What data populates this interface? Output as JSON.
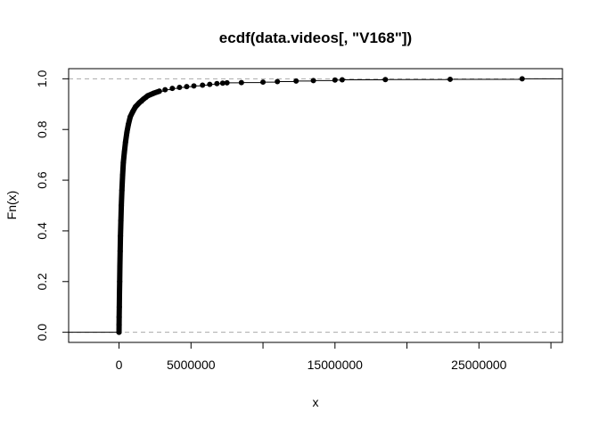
{
  "chart_data": {
    "type": "ecdf",
    "title": "ecdf(data.videos[, \"V168\"])",
    "xlabel": "x",
    "ylabel": "Fn(x)",
    "xlim": [
      -3500000,
      30800000
    ],
    "ylim": [
      -0.04,
      1.04
    ],
    "x_ticks": [
      0,
      5000000,
      10000000,
      15000000,
      20000000,
      25000000,
      30000000
    ],
    "x_tick_labels": [
      "0",
      "5000000",
      "",
      "15000000",
      "",
      "25000000",
      ""
    ],
    "y_ticks": [
      0.0,
      0.2,
      0.4,
      0.6,
      0.8,
      1.0
    ],
    "y_tick_labels": [
      "0.0",
      "0.2",
      "0.4",
      "0.6",
      "0.8",
      "1.0"
    ],
    "reference_lines": [
      0,
      1
    ],
    "points": [
      [
        0,
        0.0
      ],
      [
        5000,
        0.03
      ],
      [
        10000,
        0.06
      ],
      [
        20000,
        0.1
      ],
      [
        30000,
        0.15
      ],
      [
        45000,
        0.2
      ],
      [
        60000,
        0.26
      ],
      [
        80000,
        0.32
      ],
      [
        100000,
        0.38
      ],
      [
        130000,
        0.44
      ],
      [
        160000,
        0.5
      ],
      [
        200000,
        0.56
      ],
      [
        250000,
        0.62
      ],
      [
        300000,
        0.67
      ],
      [
        370000,
        0.71
      ],
      [
        450000,
        0.75
      ],
      [
        550000,
        0.79
      ],
      [
        650000,
        0.82
      ],
      [
        780000,
        0.85
      ],
      [
        950000,
        0.87
      ],
      [
        1150000,
        0.89
      ],
      [
        1400000,
        0.905
      ],
      [
        1700000,
        0.92
      ],
      [
        2000000,
        0.933
      ],
      [
        2400000,
        0.943
      ],
      [
        2800000,
        0.951
      ],
      [
        3200000,
        0.957
      ],
      [
        3700000,
        0.962
      ],
      [
        4200000,
        0.966
      ],
      [
        4700000,
        0.969
      ],
      [
        5200000,
        0.972
      ],
      [
        5800000,
        0.975
      ],
      [
        6300000,
        0.978
      ],
      [
        6800000,
        0.981
      ],
      [
        7200000,
        0.983
      ],
      [
        7500000,
        0.984
      ],
      [
        8500000,
        0.985
      ],
      [
        10000000,
        0.987
      ],
      [
        11000000,
        0.989
      ],
      [
        12300000,
        0.991
      ],
      [
        13500000,
        0.993
      ],
      [
        15000000,
        0.995
      ],
      [
        15500000,
        0.996
      ],
      [
        18500000,
        0.997
      ],
      [
        23000000,
        0.998
      ],
      [
        28000000,
        1.0
      ]
    ]
  }
}
